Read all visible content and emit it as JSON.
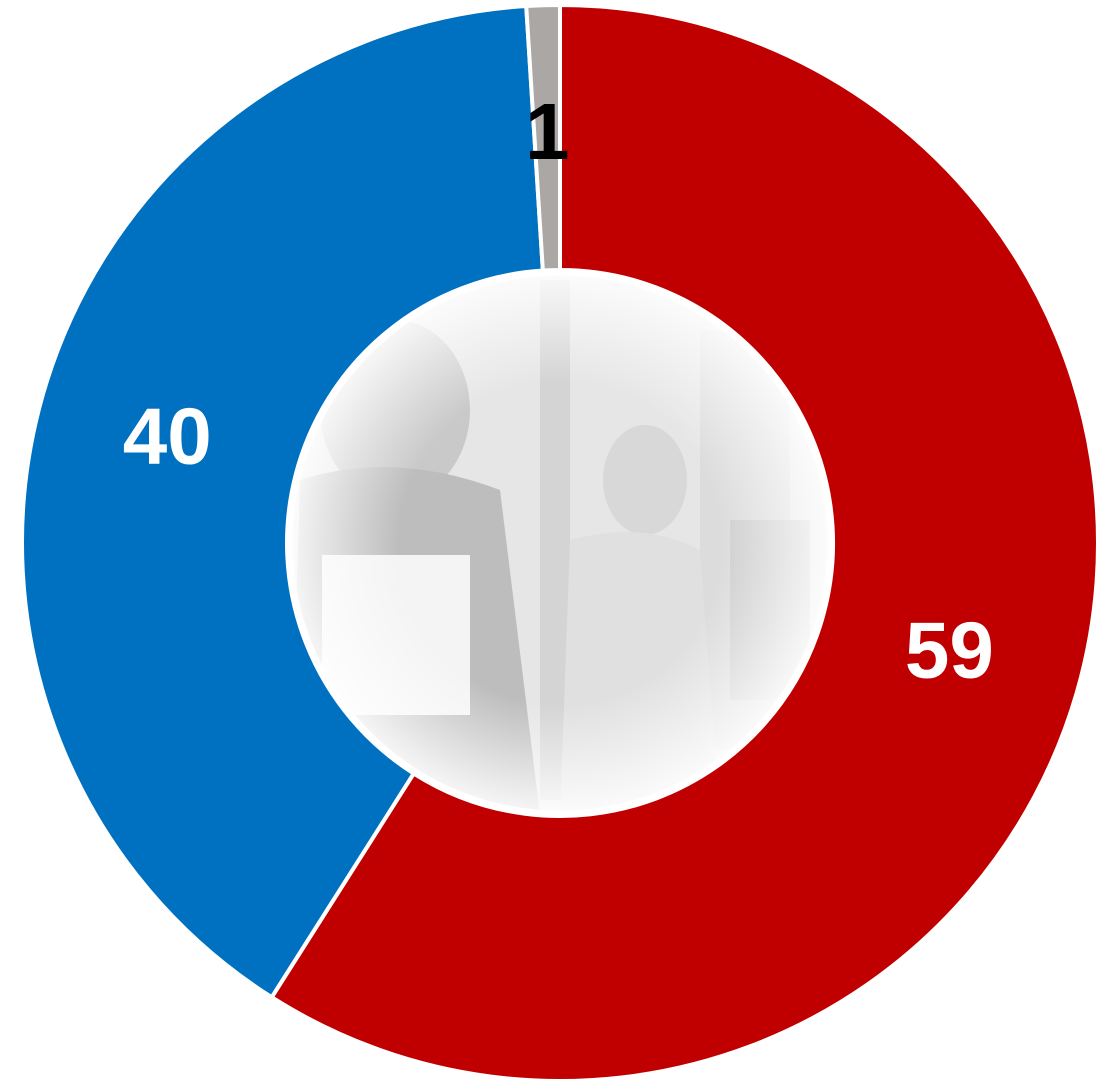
{
  "chart_data": {
    "type": "donut",
    "values": [
      59,
      40,
      1
    ],
    "colors": [
      "#c00000",
      "#0070c0",
      "#aaa7a4"
    ]
  }
}
